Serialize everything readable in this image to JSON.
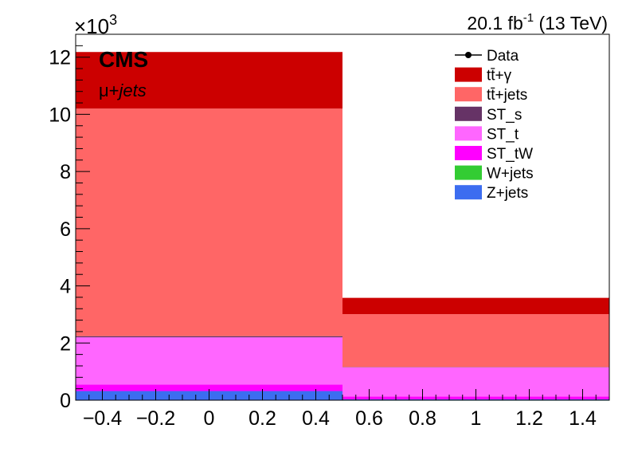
{
  "chart_data": {
    "type": "bar",
    "stacked": true,
    "x_bins": [
      [
        -0.5,
        0.5
      ],
      [
        0.5,
        1.5
      ]
    ],
    "xlim": [
      -0.5,
      1.5
    ],
    "ylim": [
      0,
      12.8
    ],
    "y_exponent_label": "×10",
    "y_exponent_power": "3",
    "x_ticks": [
      -0.4,
      -0.2,
      0,
      0.2,
      0.4,
      0.6,
      0.8,
      1,
      1.2,
      1.4
    ],
    "x_tick_labels": [
      "−0.4",
      "−0.2",
      "0",
      "0.2",
      "0.4",
      "0.6",
      "0.8",
      "1",
      "1.2",
      "1.4"
    ],
    "y_ticks": [
      0,
      2,
      4,
      6,
      8,
      10,
      12
    ],
    "y_tick_labels": [
      "0",
      "2",
      "4",
      "6",
      "8",
      "10",
      "12"
    ],
    "series": [
      {
        "name": "Z+jets",
        "color": "#3c6df0",
        "values": [
          0.32,
          0.03
        ]
      },
      {
        "name": "W+jets",
        "color": "#33cc33",
        "values": [
          0.0,
          0.0
        ]
      },
      {
        "name": "ST_tW",
        "color": "#ff00ff",
        "values": [
          0.23,
          0.1
        ]
      },
      {
        "name": "ST_t",
        "color": "#ff66ff",
        "values": [
          1.65,
          1.02
        ]
      },
      {
        "name": "ST_s",
        "color": "#663366",
        "values": [
          0.04,
          0.01
        ]
      },
      {
        "name": "tt̄+jets",
        "color": "#ff6666",
        "values": [
          7.96,
          1.85
        ]
      },
      {
        "name": "tt̄+γ",
        "color": "#cc0000",
        "values": [
          1.98,
          0.57
        ]
      }
    ],
    "legend": {
      "placement": "top-right",
      "entries": [
        "Data",
        "tt̄+γ",
        "tt̄+jets",
        "ST_s",
        "ST_t",
        "ST_tW",
        "W+jets",
        "Z+jets"
      ]
    },
    "title_right": "20.1 fb",
    "title_right_sup": "-1",
    "title_right_suffix": " (13 TeV)",
    "cms_label": "CMS",
    "channel_label_prefix": "μ+",
    "channel_label_suffix": "jets"
  }
}
